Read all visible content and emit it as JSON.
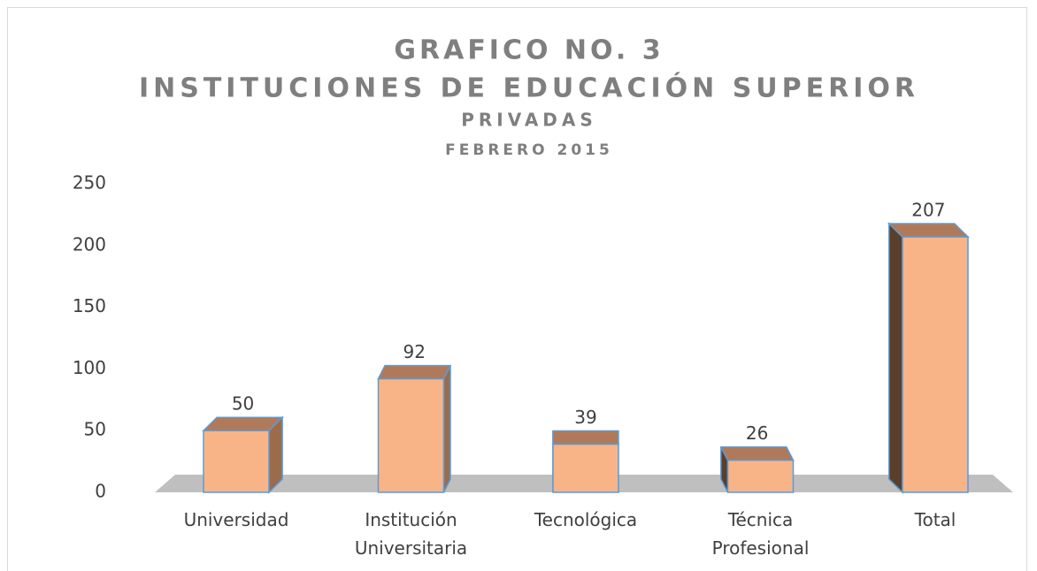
{
  "chart_data": {
    "type": "bar3d",
    "title": "GRAFICO NO. 3",
    "subtitle": [
      "INSTITUCIONES DE EDUCACIÓN SUPERIOR",
      "PRIVADAS",
      "FEBRERO 2015"
    ],
    "categories": [
      "Universidad",
      "Institución Universitaria",
      "Tecnológica",
      "Técnica Profesional",
      "Total"
    ],
    "values": [
      50,
      92,
      39,
      26,
      207
    ],
    "color": "#f8b487",
    "ylim": [
      0,
      250
    ],
    "yticks": [
      0,
      50,
      100,
      150,
      200,
      250
    ],
    "grid": false
  }
}
